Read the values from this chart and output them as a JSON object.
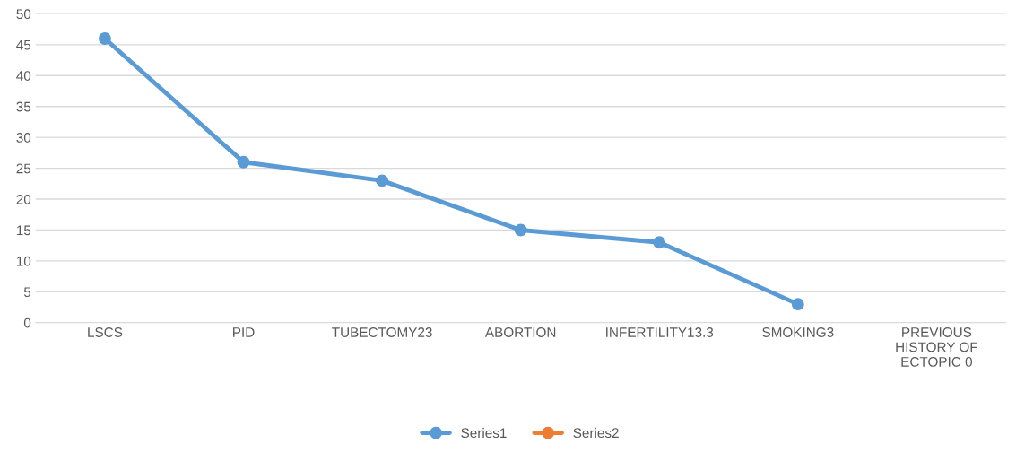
{
  "chart_data": {
    "type": "line",
    "categories": [
      "LSCS",
      "PID",
      "TUBECTOMY23",
      "ABORTION",
      "INFERTILITY13.3",
      "SMOKING3",
      "PREVIOUS\nHISTORY OF\nECTOPIC 0"
    ],
    "series": [
      {
        "name": "Series1",
        "color": "#5b9bd5",
        "values": [
          46,
          26,
          23,
          15,
          13,
          3,
          null
        ]
      },
      {
        "name": "Series2",
        "color": "#ed7d31",
        "values": [
          null,
          null,
          null,
          null,
          null,
          null,
          null
        ]
      }
    ],
    "ylim": [
      0,
      50
    ],
    "yticks": [
      0,
      5,
      10,
      15,
      20,
      25,
      30,
      35,
      40,
      45,
      50
    ],
    "grid": "y",
    "legend": "bottom",
    "marker": "circle",
    "line_style": "solid"
  }
}
